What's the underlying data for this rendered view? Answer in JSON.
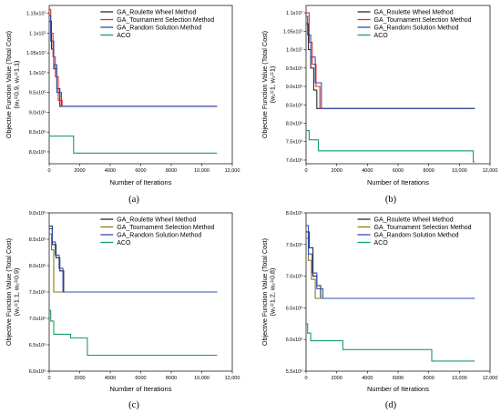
{
  "chart_data": [
    {
      "type": "line",
      "caption": "(a)",
      "xlabel": "Number of Iterations",
      "ylabel": [
        "Objective Function Value (Total Cost)",
        "(w₁=0.9, w₂=1.1)"
      ],
      "xlim": [
        0,
        12000
      ],
      "ylim": [
        7700000,
        11700000
      ],
      "xticks": [
        0,
        2000,
        4000,
        6000,
        8000,
        10000,
        12000
      ],
      "xticklabels": [
        "0",
        "2000",
        "4000",
        "6000",
        "8000",
        "10,000",
        "12,000"
      ],
      "yticks": [
        8000000,
        8500000,
        9000000,
        9500000,
        10000000,
        10500000,
        11000000,
        11500000
      ],
      "yticklabels": [
        "8.0x10⁶",
        "8.5x10⁶",
        "9.0x10⁶",
        "9.5x10⁶",
        "1.0x10⁷",
        "1.05x10⁷",
        "1.1x10⁷",
        "1.15x10⁷"
      ],
      "series": [
        {
          "name": "GA_Roulette Wheel Method",
          "color": "#2b2b2b",
          "x": [
            0,
            150,
            150,
            300,
            300,
            500,
            500,
            700,
            700,
            11000
          ],
          "y": [
            11300000,
            11300000,
            10600000,
            10600000,
            10100000,
            10100000,
            9600000,
            9600000,
            9150000,
            9150000
          ]
        },
        {
          "name": "GA_Tournament Selection Method",
          "color": "#e0302a",
          "x": [
            0,
            100,
            100,
            250,
            250,
            400,
            400,
            600,
            600,
            850,
            850,
            11000
          ],
          "y": [
            11600000,
            11600000,
            11000000,
            11000000,
            10400000,
            10400000,
            9900000,
            9900000,
            9300000,
            9300000,
            9150000,
            9150000
          ]
        },
        {
          "name": "GA_Random Solution Method",
          "color": "#2d4fb5",
          "x": [
            0,
            100,
            100,
            300,
            300,
            500,
            500,
            800,
            800,
            11000
          ],
          "y": [
            11450000,
            11450000,
            10800000,
            10800000,
            10200000,
            10200000,
            9500000,
            9500000,
            9150000,
            9150000
          ]
        },
        {
          "name": "ACO",
          "color": "#1a9e62",
          "x": [
            0,
            1600,
            1600,
            11000
          ],
          "y": [
            8400000,
            8400000,
            7970000,
            7970000
          ]
        }
      ],
      "legend": "top-right"
    },
    {
      "type": "line",
      "caption": "(b)",
      "xlabel": "Number of Iterations",
      "ylabel": [
        "Objective Function Value (Total Cost)",
        "(w₁=1, w₂=1)"
      ],
      "xlim": [
        0,
        12000
      ],
      "ylim": [
        6900000,
        11200000
      ],
      "xticks": [
        0,
        2000,
        4000,
        6000,
        8000,
        10000,
        12000
      ],
      "xticklabels": [
        "0",
        "2000",
        "4000",
        "6000",
        "8000",
        "10,000",
        "12,000"
      ],
      "yticks": [
        7000000,
        7500000,
        8000000,
        8500000,
        9000000,
        9500000,
        10000000,
        10500000,
        11000000
      ],
      "yticklabels": [
        "7.0x10⁶",
        "7.5x10⁶",
        "8.0x10⁶",
        "8.5x10⁶",
        "9.0x10⁶",
        "9.5x10⁶",
        "1.0x10⁷",
        "1.05x10⁷",
        "1.1x10⁷"
      ],
      "series": [
        {
          "name": "GA_Roulette Wheel Method",
          "color": "#2b2b2b",
          "x": [
            0,
            150,
            150,
            300,
            300,
            500,
            500,
            700,
            700,
            11000
          ],
          "y": [
            10700000,
            10700000,
            10000000,
            10000000,
            9500000,
            9500000,
            8900000,
            8900000,
            8400000,
            8400000
          ]
        },
        {
          "name": "GA_Tournament Selection Method",
          "color": "#e0302a",
          "x": [
            0,
            200,
            200,
            400,
            400,
            650,
            650,
            900,
            900,
            11000
          ],
          "y": [
            11000000,
            11000000,
            10200000,
            10200000,
            9600000,
            9600000,
            9000000,
            9000000,
            8400000,
            8400000
          ]
        },
        {
          "name": "GA_Random Solution Method",
          "color": "#2d4fb5",
          "x": [
            0,
            100,
            100,
            300,
            300,
            600,
            600,
            1000,
            1000,
            11000
          ],
          "y": [
            10900000,
            10900000,
            10400000,
            10400000,
            9800000,
            9800000,
            9100000,
            9100000,
            8400000,
            8400000
          ]
        },
        {
          "name": "ACO",
          "color": "#1a9e62",
          "x": [
            0,
            200,
            200,
            800,
            800,
            10900,
            10900,
            11000
          ],
          "y": [
            7800000,
            7800000,
            7550000,
            7550000,
            7250000,
            7250000,
            6950000,
            6950000
          ]
        }
      ],
      "legend": "top-right"
    },
    {
      "type": "line",
      "caption": "(c)",
      "xlabel": "Number of Iterations",
      "ylabel": [
        "Objective Function Value (Total Cost)",
        "(w₁=1.1, w₂=0.9)"
      ],
      "xlim": [
        0,
        12000
      ],
      "ylim": [
        6000000,
        9000000
      ],
      "xticks": [
        0,
        2000,
        4000,
        6000,
        8000,
        10000,
        12000
      ],
      "xticklabels": [
        "0",
        "2000",
        "4000",
        "6000",
        "8000",
        "10,000",
        "12,000"
      ],
      "yticks": [
        6000000,
        6500000,
        7000000,
        7500000,
        8000000,
        8500000,
        9000000
      ],
      "yticklabels": [
        "6.0x10⁶",
        "6.5x10⁶",
        "7.0x10⁶",
        "7.5x10⁶",
        "8.0x10⁶",
        "8.5x10⁶",
        "9.0x10⁶"
      ],
      "series": [
        {
          "name": "GA_Roulette Wheel Method",
          "color": "#2b2b2b",
          "x": [
            0,
            200,
            200,
            450,
            450,
            700,
            700,
            950,
            950,
            11000
          ],
          "y": [
            8750000,
            8750000,
            8400000,
            8400000,
            8150000,
            8150000,
            7900000,
            7900000,
            7500000,
            7500000
          ]
        },
        {
          "name": "GA_Tournament Selection Method",
          "color": "#8b7a1a",
          "x": [
            0,
            150,
            150,
            300,
            300,
            500,
            500,
            11000
          ],
          "y": [
            8600000,
            8600000,
            8300000,
            8300000,
            7500000,
            7500000,
            7500000,
            7500000
          ]
        },
        {
          "name": "GA_Random Solution Method",
          "color": "#2d4fb5",
          "x": [
            0,
            200,
            200,
            400,
            400,
            650,
            650,
            900,
            900,
            11000
          ],
          "y": [
            8700000,
            8700000,
            8450000,
            8450000,
            8200000,
            8200000,
            7950000,
            7950000,
            7500000,
            7500000
          ]
        },
        {
          "name": "ACO",
          "color": "#1a9e62",
          "x": [
            0,
            100,
            100,
            300,
            300,
            1400,
            1400,
            2500,
            2500,
            11000
          ],
          "y": [
            7150000,
            7150000,
            6950000,
            6950000,
            6700000,
            6700000,
            6630000,
            6630000,
            6300000,
            6300000
          ]
        }
      ],
      "legend": "top-right"
    },
    {
      "type": "line",
      "caption": "(d)",
      "xlabel": "Number of Iterations",
      "ylabel": [
        "Objective Function Value (Total Cost)",
        "(w₁=1.2, w₂=0.8)"
      ],
      "xlim": [
        0,
        12000
      ],
      "ylim": [
        5500000,
        8000000
      ],
      "xticks": [
        0,
        2000,
        4000,
        6000,
        8000,
        10000,
        12000
      ],
      "xticklabels": [
        "0",
        "2000",
        "4000",
        "6000",
        "8000",
        "10,000",
        "12,000"
      ],
      "yticks": [
        5500000,
        6000000,
        6500000,
        7000000,
        7500000,
        8000000
      ],
      "yticklabels": [
        "5.5x10⁶",
        "6.0x10⁶",
        "6.5x10⁶",
        "7.0x10⁶",
        "7.5x10⁶",
        "8.0x10⁶"
      ],
      "series": [
        {
          "name": "GA_Roulette Wheel Method",
          "color": "#2b2b2b",
          "x": [
            0,
            200,
            200,
            450,
            450,
            700,
            700,
            950,
            950,
            11000
          ],
          "y": [
            7700000,
            7700000,
            7450000,
            7450000,
            7000000,
            7000000,
            6850000,
            6850000,
            6650000,
            6650000
          ]
        },
        {
          "name": "GA_Tournament Selection Method",
          "color": "#8b7a1a",
          "x": [
            0,
            150,
            150,
            350,
            350,
            600,
            600,
            11000
          ],
          "y": [
            7600000,
            7600000,
            7250000,
            7250000,
            6950000,
            6950000,
            6650000,
            6650000
          ]
        },
        {
          "name": "GA_Random Solution Method",
          "color": "#2d4fb5",
          "x": [
            0,
            150,
            150,
            400,
            400,
            700,
            700,
            1100,
            1100,
            11000
          ],
          "y": [
            7800000,
            7800000,
            7350000,
            7350000,
            7050000,
            7050000,
            6800000,
            6800000,
            6650000,
            6650000
          ]
        },
        {
          "name": "ACO",
          "color": "#1a9e62",
          "x": [
            0,
            100,
            100,
            300,
            300,
            2400,
            2400,
            8200,
            8200,
            11000
          ],
          "y": [
            6250000,
            6250000,
            6100000,
            6100000,
            5980000,
            5980000,
            5840000,
            5840000,
            5660000,
            5660000
          ]
        }
      ],
      "legend": "top-right"
    }
  ]
}
